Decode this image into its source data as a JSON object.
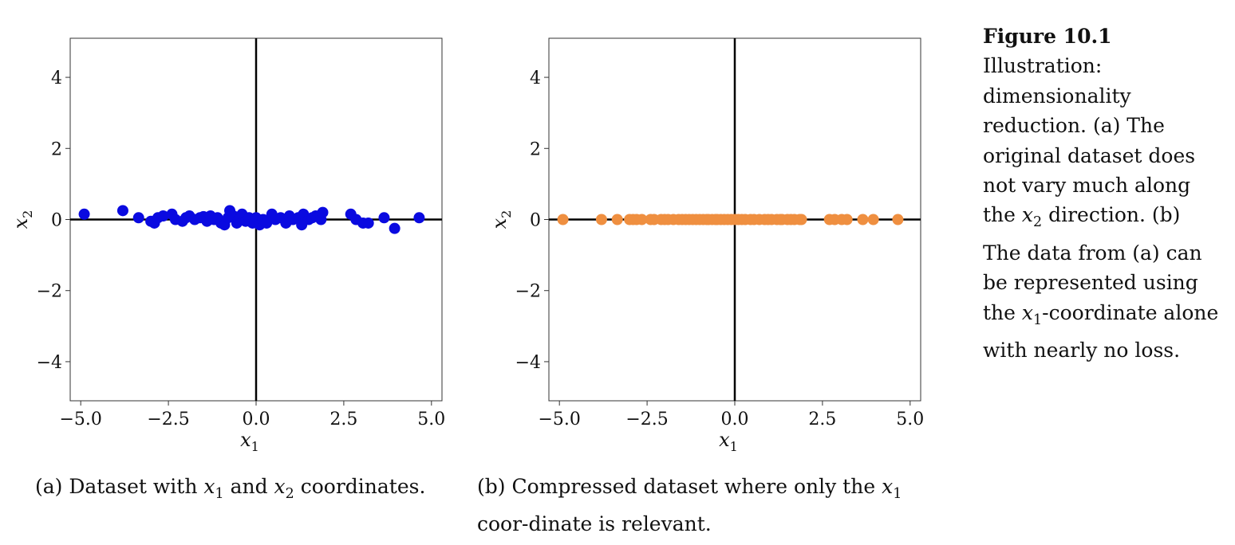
{
  "chart_data": [
    {
      "type": "scatter",
      "color": "#0a0ae0",
      "xlabel": "x",
      "xlabel_sub": "1",
      "ylabel": "x",
      "ylabel_sub": "2",
      "xlim": [
        -5.3,
        5.3
      ],
      "ylim": [
        -5.1,
        5.1
      ],
      "xticks": [
        -5.0,
        -2.5,
        0.0,
        2.5,
        5.0
      ],
      "xtick_labels": [
        "−5.0",
        "−2.5",
        "0.0",
        "2.5",
        "5.0"
      ],
      "yticks": [
        4,
        2,
        0,
        -2,
        -4
      ],
      "ytick_labels": [
        "4",
        "2",
        "0",
        "−2",
        "−4"
      ],
      "points": [
        [
          -4.9,
          0.15
        ],
        [
          -3.8,
          0.25
        ],
        [
          -3.35,
          0.05
        ],
        [
          -3.0,
          -0.05
        ],
        [
          -2.9,
          -0.1
        ],
        [
          -2.8,
          0.05
        ],
        [
          -2.65,
          0.1
        ],
        [
          -2.4,
          0.15
        ],
        [
          -2.3,
          0.0
        ],
        [
          -2.1,
          -0.05
        ],
        [
          -2.0,
          0.05
        ],
        [
          -1.9,
          0.1
        ],
        [
          -1.75,
          0.0
        ],
        [
          -1.6,
          0.05
        ],
        [
          -1.5,
          0.08
        ],
        [
          -1.4,
          -0.05
        ],
        [
          -1.3,
          0.1
        ],
        [
          -1.2,
          0.0
        ],
        [
          -1.1,
          0.05
        ],
        [
          -1.0,
          -0.1
        ],
        [
          -0.9,
          -0.15
        ],
        [
          -0.8,
          0.05
        ],
        [
          -0.75,
          0.25
        ],
        [
          -0.65,
          0.1
        ],
        [
          -0.55,
          -0.1
        ],
        [
          -0.5,
          0.0
        ],
        [
          -0.4,
          0.15
        ],
        [
          -0.3,
          -0.05
        ],
        [
          -0.2,
          0.05
        ],
        [
          -0.1,
          -0.1
        ],
        [
          0.0,
          0.05
        ],
        [
          0.1,
          -0.15
        ],
        [
          0.2,
          0.0
        ],
        [
          0.3,
          -0.1
        ],
        [
          0.45,
          0.15
        ],
        [
          0.55,
          0.0
        ],
        [
          0.7,
          0.05
        ],
        [
          0.85,
          -0.1
        ],
        [
          0.95,
          0.1
        ],
        [
          1.05,
          0.0
        ],
        [
          1.2,
          0.05
        ],
        [
          1.3,
          -0.15
        ],
        [
          1.35,
          0.15
        ],
        [
          1.5,
          0.0
        ],
        [
          1.6,
          0.05
        ],
        [
          1.7,
          0.1
        ],
        [
          1.85,
          0.0
        ],
        [
          1.9,
          0.2
        ],
        [
          2.7,
          0.15
        ],
        [
          2.85,
          0.0
        ],
        [
          3.05,
          -0.1
        ],
        [
          3.2,
          -0.1
        ],
        [
          3.65,
          0.05
        ],
        [
          3.95,
          -0.25
        ],
        [
          4.65,
          0.05
        ]
      ]
    },
    {
      "type": "scatter",
      "color": "#ef8f40",
      "xlabel": "x",
      "xlabel_sub": "1",
      "ylabel": "x",
      "ylabel_sub": "2",
      "xlim": [
        -5.3,
        5.3
      ],
      "ylim": [
        -5.1,
        5.1
      ],
      "xticks": [
        -5.0,
        -2.5,
        0.0,
        2.5,
        5.0
      ],
      "xtick_labels": [
        "−5.0",
        "−2.5",
        "0.0",
        "2.5",
        "5.0"
      ],
      "yticks": [
        4,
        2,
        0,
        -2,
        -4
      ],
      "ytick_labels": [
        "4",
        "2",
        "0",
        "−2",
        "−4"
      ],
      "points": [
        [
          -4.9,
          0
        ],
        [
          -3.8,
          0
        ],
        [
          -3.35,
          0
        ],
        [
          -3.0,
          0
        ],
        [
          -2.9,
          0
        ],
        [
          -2.8,
          0
        ],
        [
          -2.65,
          0
        ],
        [
          -2.4,
          0
        ],
        [
          -2.3,
          0
        ],
        [
          -2.1,
          0
        ],
        [
          -2.0,
          0
        ],
        [
          -1.9,
          0
        ],
        [
          -1.75,
          0
        ],
        [
          -1.6,
          0
        ],
        [
          -1.5,
          0
        ],
        [
          -1.4,
          0
        ],
        [
          -1.3,
          0
        ],
        [
          -1.2,
          0
        ],
        [
          -1.1,
          0
        ],
        [
          -1.0,
          0
        ],
        [
          -0.9,
          0
        ],
        [
          -0.8,
          0
        ],
        [
          -0.75,
          0
        ],
        [
          -0.65,
          0
        ],
        [
          -0.55,
          0
        ],
        [
          -0.5,
          0
        ],
        [
          -0.4,
          0
        ],
        [
          -0.3,
          0
        ],
        [
          -0.2,
          0
        ],
        [
          -0.1,
          0
        ],
        [
          0.0,
          0
        ],
        [
          0.1,
          0
        ],
        [
          0.2,
          0
        ],
        [
          0.3,
          0
        ],
        [
          0.45,
          0
        ],
        [
          0.55,
          0
        ],
        [
          0.7,
          0
        ],
        [
          0.85,
          0
        ],
        [
          0.95,
          0
        ],
        [
          1.05,
          0
        ],
        [
          1.2,
          0
        ],
        [
          1.3,
          0
        ],
        [
          1.35,
          0
        ],
        [
          1.5,
          0
        ],
        [
          1.6,
          0
        ],
        [
          1.7,
          0
        ],
        [
          1.85,
          0
        ],
        [
          1.9,
          0
        ],
        [
          2.7,
          0
        ],
        [
          2.85,
          0
        ],
        [
          3.05,
          0
        ],
        [
          3.2,
          0
        ],
        [
          3.65,
          0
        ],
        [
          3.95,
          0
        ],
        [
          4.65,
          0
        ]
      ]
    }
  ],
  "captions": {
    "a_prefix": "(a) Dataset with ",
    "a_x1": "x",
    "a_x1_sub": "1",
    "a_mid": " and ",
    "a_x2": "x",
    "a_x2_sub": "2",
    "a_suffix": " coordinates.",
    "b_prefix": "(b) Compressed dataset where only the ",
    "b_x1": "x",
    "b_x1_sub": "1",
    "b_suffix": " coor-dinate is relevant."
  },
  "figure": {
    "label": "Figure 10.1",
    "text_1": "Illustration: dimensionality reduction. (a) The original dataset does not vary much along the ",
    "text_var1": "x",
    "text_var1_sub": "2",
    "text_2": " direction. (b) The data from (a) can be represented using the ",
    "text_var2": "x",
    "text_var2_sub": "1",
    "text_3": "-coordinate alone with nearly no loss."
  }
}
